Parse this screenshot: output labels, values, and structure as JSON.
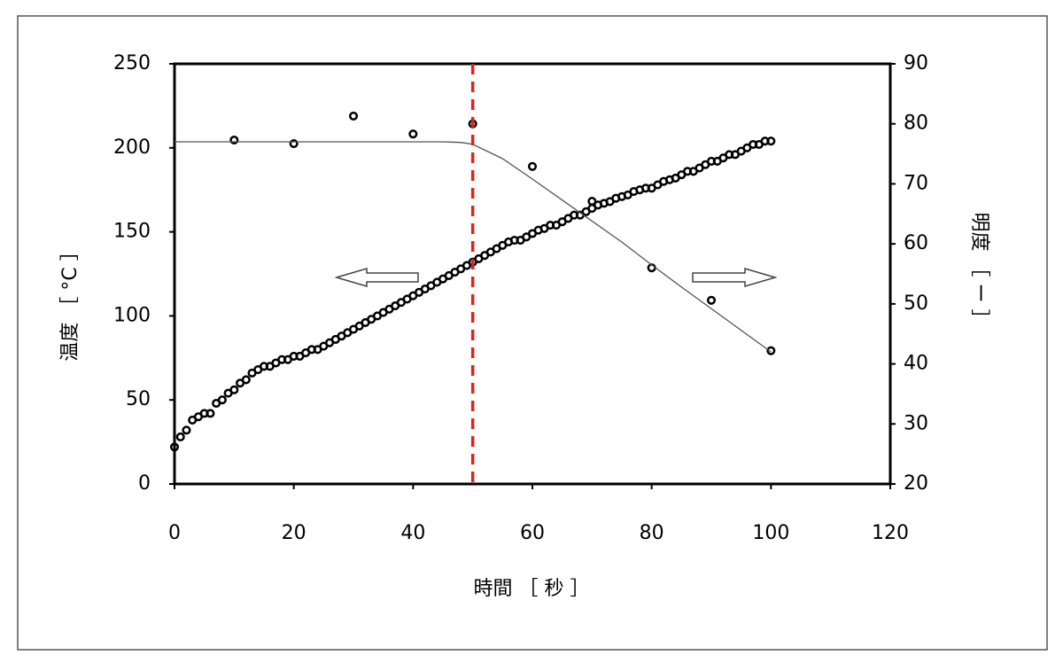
{
  "chart_data": {
    "type": "scatter",
    "xlabel": "時間 ［ 秒 ］",
    "ylabel": "温度 ［ °C ］",
    "y2label": "明度 ［ ー ］",
    "xlim": [
      0,
      120
    ],
    "xticks": [
      0,
      20,
      40,
      60,
      80,
      100,
      120
    ],
    "ylim": [
      0,
      250
    ],
    "yticks": [
      0,
      50,
      100,
      150,
      200,
      250
    ],
    "y2lim": [
      20,
      90
    ],
    "y2ticks": [
      20,
      30,
      40,
      50,
      60,
      70,
      80,
      90
    ],
    "vline": {
      "x": 50,
      "color": "#d9261c"
    },
    "series": [
      {
        "color": "#000000",
        "x": [
          0,
          1,
          2,
          3,
          4,
          5,
          6,
          7,
          8,
          9,
          10,
          11,
          12,
          13,
          14,
          15,
          16,
          17,
          18,
          19,
          20,
          21,
          22,
          23,
          24,
          25,
          26,
          27,
          28,
          29,
          30,
          31,
          32,
          33,
          34,
          35,
          36,
          37,
          38,
          39,
          40,
          41,
          42,
          43,
          44,
          45,
          46,
          47,
          48,
          49,
          50,
          51,
          52,
          53,
          54,
          55,
          56,
          57,
          58,
          59,
          60,
          61,
          62,
          63,
          64,
          65,
          66,
          67,
          68,
          69,
          70,
          71,
          72,
          73,
          74,
          75,
          76,
          77,
          78,
          79,
          80,
          81,
          82,
          83,
          84,
          85,
          86,
          87,
          88,
          89,
          90,
          91,
          92,
          93,
          94,
          95,
          96,
          97,
          98,
          99,
          100
        ],
        "values": [
          22,
          28,
          32,
          38,
          40,
          42,
          42,
          48,
          50,
          54,
          56,
          60,
          62,
          66,
          68,
          70,
          70,
          72,
          74,
          74,
          76,
          76,
          78,
          80,
          80,
          82,
          84,
          86,
          88,
          90,
          92,
          94,
          96,
          98,
          100,
          102,
          104,
          106,
          108,
          110,
          112,
          114,
          116,
          118,
          120,
          122,
          124,
          126,
          128,
          130,
          132,
          134,
          136,
          138,
          140,
          142,
          144,
          145,
          145,
          147,
          149,
          151,
          152,
          154,
          154,
          156,
          158,
          160,
          160,
          162,
          164,
          166,
          167,
          168,
          170,
          171,
          172,
          174,
          175,
          176,
          176,
          178,
          180,
          181,
          182,
          184,
          186,
          186,
          188,
          190,
          192,
          192,
          194,
          196,
          196,
          198,
          200,
          202,
          202,
          204,
          204
        ]
      },
      {
        "color": "#000000",
        "axis": "y2",
        "x": [
          10,
          20,
          30,
          40,
          50,
          60,
          70,
          80,
          90,
          100
        ],
        "values": [
          77.3,
          76.7,
          81.3,
          78.3,
          80,
          72.9,
          67.1,
          56,
          50.6,
          42.2
        ]
      },
      {
        "type": "line",
        "color": "#555555",
        "axis": "y2",
        "x": [
          0,
          10,
          20,
          30,
          40,
          45,
          48,
          50,
          55,
          60,
          65,
          70,
          75,
          80,
          85,
          90,
          95,
          100
        ],
        "values": [
          77,
          77,
          77,
          77,
          77,
          77,
          76.9,
          76.6,
          74.2,
          70.8,
          67.3,
          63.8,
          60.3,
          56.5,
          52.8,
          49.2,
          45.6,
          42
        ]
      }
    ]
  }
}
